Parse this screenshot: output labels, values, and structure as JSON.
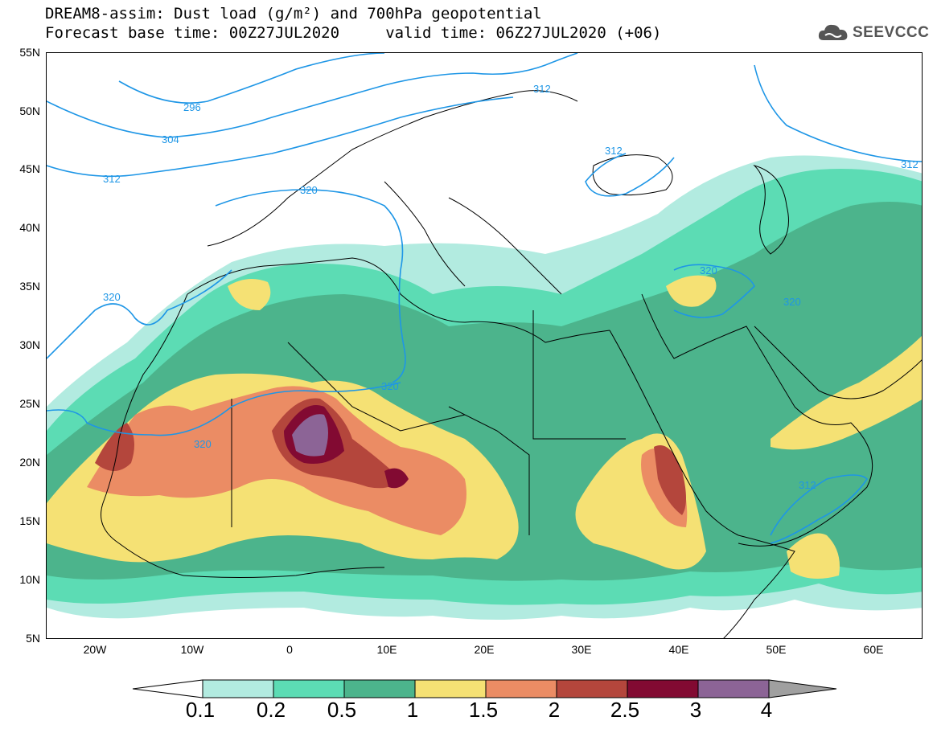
{
  "title": {
    "line1": "DREAM8-assim: Dust load (g/m²) and 700hPa geopotential",
    "line2": "Forecast base time: 00Z27JUL2020     valid time: 06Z27JUL2020 (+06)"
  },
  "logo": {
    "text": "SEEVCCC",
    "icon": "cloud-icon"
  },
  "axes": {
    "lat_labels": [
      "55N",
      "50N",
      "45N",
      "40N",
      "35N",
      "30N",
      "25N",
      "20N",
      "15N",
      "10N",
      "5N"
    ],
    "lon_labels": [
      "20W",
      "10W",
      "0",
      "10E",
      "20E",
      "30E",
      "40E",
      "50E",
      "60E"
    ],
    "lat_range": [
      5,
      55
    ],
    "lon_range": [
      -25,
      65
    ]
  },
  "contours": {
    "labels": [
      "296",
      "304",
      "312",
      "320",
      "320",
      "320",
      "320",
      "320",
      "312",
      "312",
      "312",
      "320"
    ]
  },
  "colorbar": {
    "levels": [
      "0.1",
      "0.2",
      "0.5",
      "1",
      "1.5",
      "2",
      "2.5",
      "3",
      "4"
    ],
    "colors": [
      "#ffffff",
      "#b2ebe0",
      "#5cdcb4",
      "#4cb48c",
      "#f5e174",
      "#eb8c64",
      "#b4463c",
      "#820a32",
      "#8c6496",
      "#a0a0a0"
    ]
  },
  "colors": {
    "contour": "#1e96e6",
    "coastline": "#000000"
  }
}
